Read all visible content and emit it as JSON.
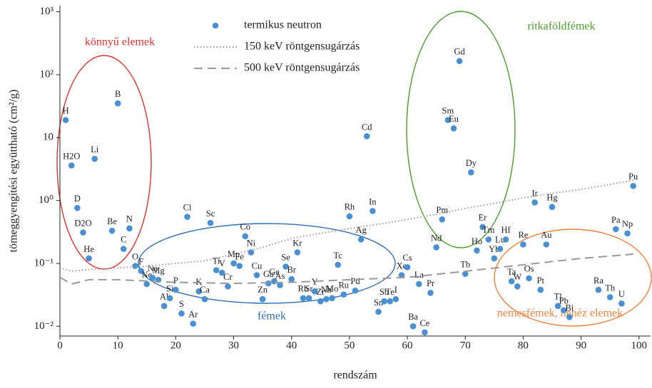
{
  "chart_data": {
    "type": "scatter",
    "x_label": "rendszám",
    "y_label": "tömeggyengítési együttható (cm²/g)",
    "xlim": [
      0,
      102
    ],
    "xticks": [
      0,
      10,
      20,
      30,
      40,
      50,
      60,
      70,
      80,
      90,
      100
    ],
    "ylim": [
      0.007,
      1250
    ],
    "log_y": true,
    "yticks": [
      {
        "value": 0.01,
        "label": "10⁻²"
      },
      {
        "value": 0.1,
        "label": "10⁻¹"
      },
      {
        "value": 1,
        "label": "10⁰"
      },
      10,
      {
        "value": 100,
        "label": "10²"
      },
      {
        "value": 1000,
        "label": "10³"
      }
    ],
    "series": [
      {
        "name": "termikus neutron",
        "type": "scatter",
        "color": "#4a90d0",
        "labels": [
          "H",
          "B",
          "H2O",
          "Li",
          "D",
          "D2O",
          "Be",
          "N",
          "He",
          "C",
          "O",
          "F",
          "Ne",
          "Na",
          "Mg",
          "Al",
          "Si",
          "P",
          "S",
          "Ar",
          "Cl",
          "K",
          "Ca",
          "Sc",
          "Ti",
          "V",
          "Cr",
          "Mn",
          "Fe",
          "Co",
          "Ni",
          "Cu",
          "Zn",
          "Ga",
          "Ge",
          "As",
          "Se",
          "Br",
          "Kr",
          "Rb",
          "Sr",
          "Y",
          "Zr",
          "Nb",
          "Mo",
          "Tc",
          "Ru",
          "Pd",
          "Rh",
          "In",
          "Ag",
          "Cd",
          "Sn",
          "Sb",
          "Te",
          "I",
          "Xe",
          "Cs",
          "La",
          "Ba",
          "Ce",
          "Pr",
          "Nd",
          "Pm",
          "Sm",
          "Eu",
          "Gd",
          "Tb",
          "Dy",
          "Ho",
          "Er",
          "Tm",
          "Yb",
          "Lu",
          "Hf",
          "Ta",
          "W",
          "Re",
          "Os",
          "Ir",
          "Pt",
          "Au",
          "Hg",
          "Tl",
          "Pb",
          "Bi",
          "Ra",
          "Th",
          "U",
          "Pa",
          "Np",
          "Pu"
        ],
        "x": [
          1,
          10,
          2,
          6,
          3,
          4,
          9,
          12,
          5,
          11,
          13,
          14,
          15,
          16,
          17,
          18,
          19,
          20,
          21,
          23,
          22,
          24,
          25,
          26,
          27,
          28,
          29,
          30,
          31,
          32,
          33,
          34,
          35,
          36,
          37,
          38,
          39,
          40,
          41,
          42,
          43,
          44,
          45,
          46,
          47,
          48,
          49,
          51,
          50,
          54,
          52,
          53,
          55,
          56,
          57,
          58,
          59,
          60,
          62,
          61,
          63,
          64,
          65,
          66,
          67,
          68,
          69,
          70,
          71,
          72,
          73,
          74,
          75,
          76,
          77,
          78,
          79,
          80,
          81,
          82,
          83,
          84,
          85,
          86,
          87,
          88,
          93,
          95,
          97,
          96,
          98,
          99
        ],
        "values": [
          19,
          35,
          3.6,
          4.6,
          0.76,
          0.31,
          0.33,
          0.36,
          0.12,
          0.17,
          0.091,
          0.076,
          0.047,
          0.059,
          0.055,
          0.021,
          0.028,
          0.038,
          0.016,
          0.011,
          0.55,
          0.036,
          0.027,
          0.44,
          0.078,
          0.071,
          0.043,
          0.1,
          0.091,
          0.27,
          0.15,
          0.065,
          0.027,
          0.048,
          0.052,
          0.045,
          0.089,
          0.056,
          0.15,
          0.028,
          0.028,
          0.036,
          0.025,
          0.027,
          0.028,
          0.095,
          0.032,
          0.037,
          0.56,
          0.68,
          0.24,
          10.5,
          0.017,
          0.025,
          0.025,
          0.027,
          0.065,
          0.087,
          0.047,
          0.01,
          0.008,
          0.034,
          0.18,
          0.5,
          19,
          14,
          165,
          0.068,
          2.8,
          0.16,
          0.38,
          0.24,
          0.12,
          0.17,
          0.24,
          0.052,
          0.043,
          0.2,
          0.058,
          0.93,
          0.038,
          0.2,
          0.79,
          0.021,
          0.018,
          0.014,
          0.038,
          0.029,
          0.023,
          0.35,
          0.3,
          1.7
        ]
      },
      {
        "name": "150 keV röntgensugárzás",
        "type": "line",
        "style": "dotted",
        "color": "#999999",
        "x": [
          0,
          2,
          5,
          10,
          15,
          20,
          25,
          30,
          35,
          40,
          45,
          50,
          55,
          60,
          65,
          70,
          75,
          80,
          85,
          90,
          95,
          99
        ],
        "values": [
          0.085,
          0.075,
          0.08,
          0.085,
          0.09,
          0.1,
          0.11,
          0.14,
          0.18,
          0.25,
          0.3,
          0.36,
          0.42,
          0.5,
          0.6,
          0.75,
          0.9,
          1.1,
          1.3,
          1.5,
          1.8,
          2.1
        ]
      },
      {
        "name": "500 keV röntgensugárzás",
        "type": "line",
        "style": "dashed",
        "color": "#999999",
        "x": [
          0,
          2,
          5,
          10,
          20,
          30,
          40,
          50,
          60,
          70,
          80,
          90,
          99
        ],
        "values": [
          0.06,
          0.047,
          0.055,
          0.055,
          0.05,
          0.048,
          0.05,
          0.055,
          0.06,
          0.075,
          0.095,
          0.12,
          0.14
        ]
      }
    ],
    "annotations": [
      {
        "text": "könnyű elemek",
        "color": "#e03030"
      },
      {
        "text": "ritkaföldfémek",
        "color": "#4c9a2a"
      },
      {
        "text": "fémek",
        "color": "#2f6db5"
      },
      {
        "text": "nemesfémek, nehéz elemek",
        "color": "#f07f3a"
      }
    ]
  }
}
